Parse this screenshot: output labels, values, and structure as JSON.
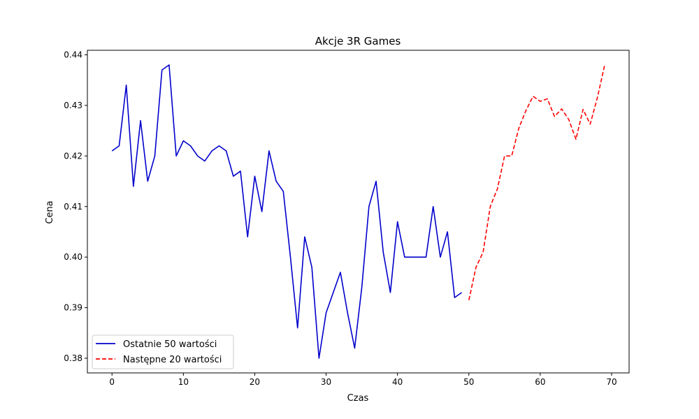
{
  "chart_data": {
    "type": "line",
    "title": "Akcje 3R Games",
    "xlabel": "Czas",
    "ylabel": "Cena",
    "xlim": [
      -3.45,
      72.45
    ],
    "ylim": [
      0.3771,
      0.4409
    ],
    "xticks": [
      0,
      10,
      20,
      30,
      40,
      50,
      60,
      70
    ],
    "xtick_labels": [
      "0",
      "10",
      "20",
      "30",
      "40",
      "50",
      "60",
      "70"
    ],
    "yticks": [
      0.38,
      0.39,
      0.4,
      0.41,
      0.42,
      0.43,
      0.44
    ],
    "ytick_labels": [
      "0.38",
      "0.39",
      "0.40",
      "0.41",
      "0.42",
      "0.43",
      "0.44"
    ],
    "grid": false,
    "legend_position": "lower-left",
    "series": [
      {
        "name": "Ostatnie 50 wartości",
        "color": "#0000cc",
        "style": "solid",
        "x": [
          0,
          1,
          2,
          3,
          4,
          5,
          6,
          7,
          8,
          9,
          10,
          11,
          12,
          13,
          14,
          15,
          16,
          17,
          18,
          19,
          20,
          21,
          22,
          23,
          24,
          25,
          26,
          27,
          28,
          29,
          30,
          31,
          32,
          33,
          34,
          35,
          36,
          37,
          38,
          39,
          40,
          41,
          42,
          43,
          44,
          45,
          46,
          47,
          48,
          49
        ],
        "values": [
          0.421,
          0.422,
          0.434,
          0.414,
          0.427,
          0.415,
          0.42,
          0.437,
          0.438,
          0.42,
          0.423,
          0.422,
          0.42,
          0.419,
          0.421,
          0.422,
          0.421,
          0.416,
          0.417,
          0.404,
          0.416,
          0.409,
          0.421,
          0.415,
          0.413,
          0.4,
          0.386,
          0.404,
          0.398,
          0.38,
          0.389,
          0.393,
          0.397,
          0.389,
          0.382,
          0.394,
          0.41,
          0.415,
          0.401,
          0.393,
          0.407,
          0.4,
          0.4,
          0.4,
          0.4,
          0.41,
          0.4,
          0.405,
          0.392,
          0.393
        ]
      },
      {
        "name": "Następne 20 wartości",
        "color": "#ff0000",
        "style": "dashed",
        "x": [
          50,
          51,
          52,
          53,
          54,
          55,
          56,
          57,
          58,
          59,
          60,
          61,
          62,
          63,
          64,
          65,
          66,
          67,
          68,
          69
        ],
        "values": [
          0.3915,
          0.398,
          0.401,
          0.41,
          0.4135,
          0.42,
          0.42,
          0.4255,
          0.429,
          0.4318,
          0.4308,
          0.4313,
          0.4278,
          0.4293,
          0.4272,
          0.4233,
          0.4292,
          0.4263,
          0.4315,
          0.4378
        ]
      }
    ]
  }
}
